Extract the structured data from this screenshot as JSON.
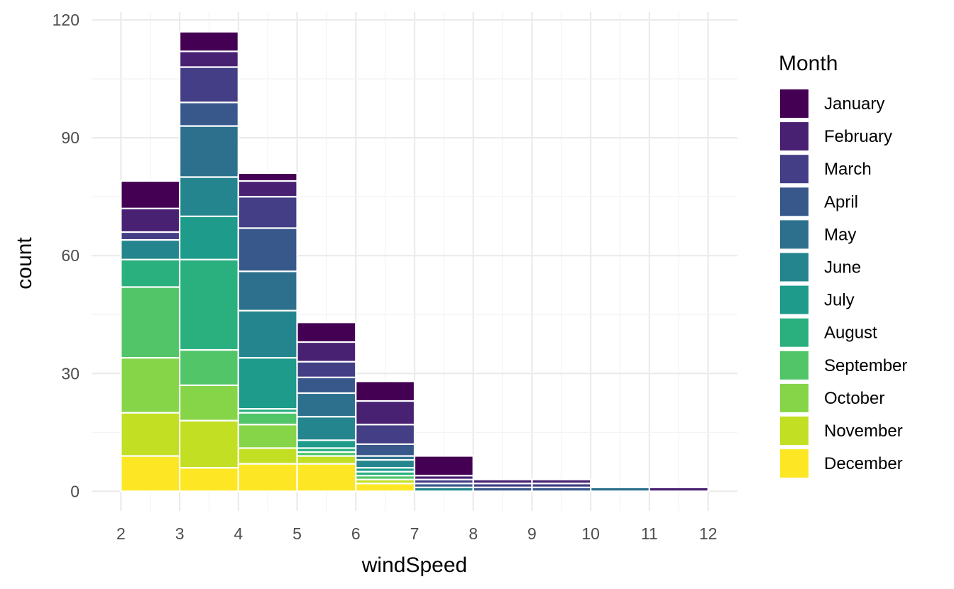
{
  "chart_data": {
    "type": "bar",
    "subtype": "stacked-histogram",
    "title": "",
    "xlabel": "windSpeed",
    "ylabel": "count",
    "xlim": [
      1.5,
      12.5
    ],
    "ylim": [
      -5,
      122
    ],
    "x_ticks": [
      2,
      3,
      4,
      5,
      6,
      7,
      8,
      9,
      10,
      11,
      12
    ],
    "y_ticks": [
      0,
      30,
      60,
      90,
      120
    ],
    "grid": true,
    "legend": {
      "title": "Month",
      "position": "right"
    },
    "bins": [
      {
        "start": 2,
        "end": 3
      },
      {
        "start": 3,
        "end": 4
      },
      {
        "start": 4,
        "end": 5
      },
      {
        "start": 5,
        "end": 6
      },
      {
        "start": 6,
        "end": 7
      },
      {
        "start": 7,
        "end": 8
      },
      {
        "start": 8,
        "end": 9
      },
      {
        "start": 9,
        "end": 10
      },
      {
        "start": 10,
        "end": 11
      },
      {
        "start": 11,
        "end": 12
      }
    ],
    "series": [
      {
        "name": "January",
        "color": "#440154",
        "values": [
          7,
          5,
          2,
          5,
          5,
          5,
          0,
          0,
          0,
          0
        ]
      },
      {
        "name": "February",
        "color": "#482173",
        "values": [
          6,
          4,
          4,
          5,
          6,
          1,
          1,
          1,
          0,
          1
        ]
      },
      {
        "name": "March",
        "color": "#433e85",
        "values": [
          2,
          9,
          8,
          4,
          5,
          1,
          1,
          1,
          0,
          0
        ]
      },
      {
        "name": "April",
        "color": "#38588c",
        "values": [
          0,
          6,
          11,
          4,
          3,
          1,
          1,
          1,
          0,
          0
        ]
      },
      {
        "name": "May",
        "color": "#2d708e",
        "values": [
          0,
          13,
          10,
          6,
          1,
          0,
          0,
          0,
          1,
          0
        ]
      },
      {
        "name": "June",
        "color": "#25858e",
        "values": [
          5,
          10,
          12,
          6,
          2,
          1,
          0,
          0,
          0,
          0
        ]
      },
      {
        "name": "July",
        "color": "#1e9b8a",
        "values": [
          0,
          11,
          13,
          2,
          1,
          0,
          0,
          0,
          0,
          0
        ]
      },
      {
        "name": "August",
        "color": "#2ab07f",
        "values": [
          7,
          23,
          1,
          1,
          1,
          0,
          0,
          0,
          0,
          0
        ]
      },
      {
        "name": "September",
        "color": "#52c569",
        "values": [
          18,
          9,
          3,
          1,
          1,
          0,
          0,
          0,
          0,
          0
        ]
      },
      {
        "name": "October",
        "color": "#86d549",
        "values": [
          14,
          9,
          6,
          0,
          0,
          0,
          0,
          0,
          0,
          0
        ]
      },
      {
        "name": "November",
        "color": "#c2df23",
        "values": [
          11,
          12,
          4,
          2,
          1,
          0,
          0,
          0,
          0,
          0
        ]
      },
      {
        "name": "December",
        "color": "#fde725",
        "values": [
          9,
          6,
          7,
          7,
          2,
          0,
          0,
          0,
          0,
          0
        ]
      }
    ]
  }
}
